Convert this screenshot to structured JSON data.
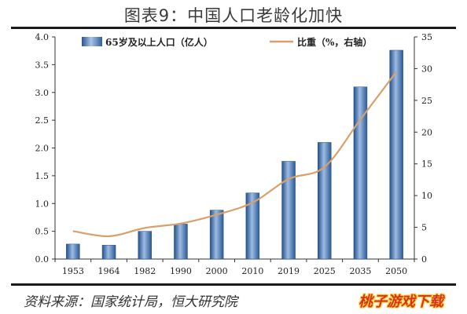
{
  "title": "图表9：中国人口老龄化加快",
  "source": "资料来源：国家统计局，恒大研究院",
  "watermark": "桃子游戏下载",
  "colors": {
    "bar": "#3d6ea5",
    "bar_highlight": "#a9c4e6",
    "line": "#d9a06b",
    "axis": "#333333"
  },
  "chart_data": {
    "type": "bar",
    "categories": [
      "1953",
      "1964",
      "1982",
      "1990",
      "2000",
      "2010",
      "2019",
      "2025",
      "2035",
      "2050"
    ],
    "series": [
      {
        "name": "65岁及以上人口（亿人）",
        "type": "bar",
        "axis": "left",
        "values": [
          0.27,
          0.25,
          0.5,
          0.63,
          0.88,
          1.19,
          1.76,
          2.1,
          3.1,
          3.76
        ]
      },
      {
        "name": "比重（%，右轴）",
        "type": "line",
        "axis": "right",
        "values": [
          4.4,
          3.6,
          4.9,
          5.6,
          7.0,
          8.9,
          12.6,
          14.5,
          22.0,
          29.5
        ]
      }
    ],
    "y_left": {
      "lim": [
        0,
        4.0
      ],
      "ticks": [
        "0.0",
        "0.5",
        "1.0",
        "1.5",
        "2.0",
        "2.5",
        "3.0",
        "3.5",
        "4.0"
      ]
    },
    "y_right": {
      "lim": [
        0,
        35
      ],
      "ticks": [
        "0",
        "5",
        "10",
        "15",
        "20",
        "25",
        "30",
        "35"
      ]
    },
    "legend_position": "top",
    "grid": false
  }
}
